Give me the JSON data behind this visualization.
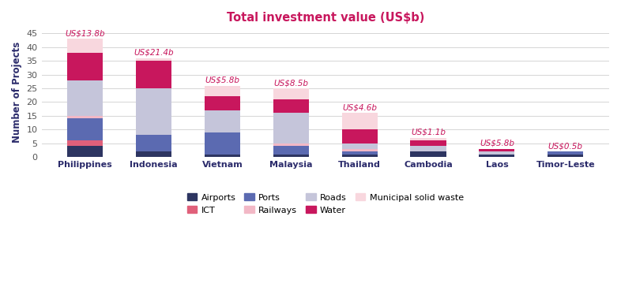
{
  "title": "Total investment value (US$b)",
  "title_color": "#c8175d",
  "ylabel": "Number of Projects",
  "categories": [
    "Philippines",
    "Indonesia",
    "Vietnam",
    "Malaysia",
    "Thailand",
    "Cambodia",
    "Laos",
    "Timor-Leste"
  ],
  "investment_labels": [
    "US$13.8b",
    "US$21.4b",
    "US$5.8b",
    "US$8.5b",
    "US$4.6b",
    "US$1.1b",
    "US$5.8b",
    "US$0.5b"
  ],
  "sectors": [
    "Airports",
    "ICT",
    "Ports",
    "Railways",
    "Roads",
    "Water",
    "Municipal solid waste"
  ],
  "colors": {
    "Airports": "#2d3561",
    "ICT": "#e0607a",
    "Ports": "#5b6ab1",
    "Railways": "#f2b8c6",
    "Roads": "#c5c5da",
    "Water": "#c8175d",
    "Municipal solid waste": "#f8d7de"
  },
  "data": {
    "Airports": [
      4,
      2,
      1,
      1,
      1,
      2,
      1,
      1
    ],
    "ICT": [
      2,
      0,
      0,
      0,
      0,
      0,
      0,
      0
    ],
    "Ports": [
      8,
      6,
      8,
      3,
      1,
      0,
      0,
      1
    ],
    "Railways": [
      1,
      0,
      0,
      1,
      1,
      0,
      0,
      0
    ],
    "Roads": [
      13,
      17,
      8,
      11,
      2,
      2,
      1,
      0
    ],
    "Water": [
      10,
      10,
      5,
      5,
      5,
      2,
      1,
      0
    ],
    "Municipal solid waste": [
      5,
      1,
      4,
      4,
      6,
      1,
      0,
      0
    ]
  },
  "ylim": [
    0,
    47
  ],
  "yticks": [
    0,
    5,
    10,
    15,
    20,
    25,
    30,
    35,
    40,
    45
  ],
  "label_color": "#c8175d",
  "label_fontsize": 7.5,
  "background_color": "#ffffff",
  "grid_color": "#d5d5d5"
}
